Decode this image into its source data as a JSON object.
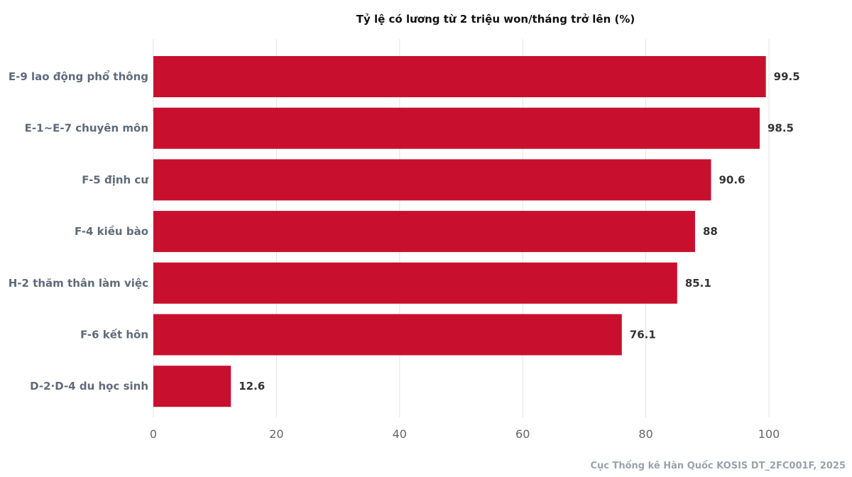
{
  "chart_data": {
    "type": "bar",
    "orientation": "horizontal",
    "title": "Tỷ lệ có lương từ 2 triệu won/tháng trở lên (%)",
    "categories": [
      "E-9 lao động phổ thông",
      "E-1~E-7 chuyên môn",
      "F-5 định cư",
      "F-4 kiều bào",
      "H-2 thăm thân làm việc",
      "F-6 kết hôn",
      "D-2·D-4 du học sinh"
    ],
    "values": [
      99.5,
      98.5,
      90.6,
      88,
      85.1,
      76.1,
      12.6
    ],
    "value_labels": [
      "99.5",
      "98.5",
      "90.6",
      "88",
      "85.1",
      "76.1",
      "12.6"
    ],
    "xlim": [
      0,
      100
    ],
    "xticks": [
      0,
      20,
      40,
      60,
      80,
      100
    ],
    "xtick_labels": [
      "0",
      "20",
      "40",
      "60",
      "80",
      "100"
    ],
    "grid": true,
    "bar_color": "#c8102e",
    "source": "Cục Thống kê Hàn Quốc KOSIS DT_2FC001F, 2025"
  }
}
